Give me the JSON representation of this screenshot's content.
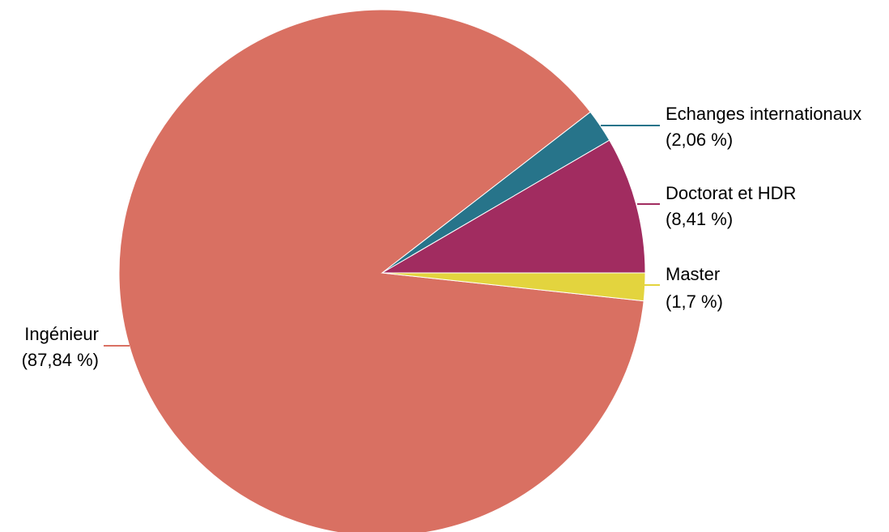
{
  "chart_data": {
    "type": "pie",
    "title": "",
    "slices": [
      {
        "label": "Ingénieur",
        "value_text": "(87,84 %)",
        "value": 87.84,
        "color": "#d97062"
      },
      {
        "label": "Echanges internationaux",
        "value_text": "(2,06 %)",
        "value": 2.06,
        "color": "#27748a"
      },
      {
        "label": "Doctorat et HDR",
        "value_text": "(8,41 %)",
        "value": 8.41,
        "color": "#a12c60"
      },
      {
        "label": "Master",
        "value_text": "(1,7 %)",
        "value": 1.7,
        "color": "#e3d43e"
      }
    ],
    "legend": "none",
    "labels_position": "outside-with-leader-lines"
  }
}
